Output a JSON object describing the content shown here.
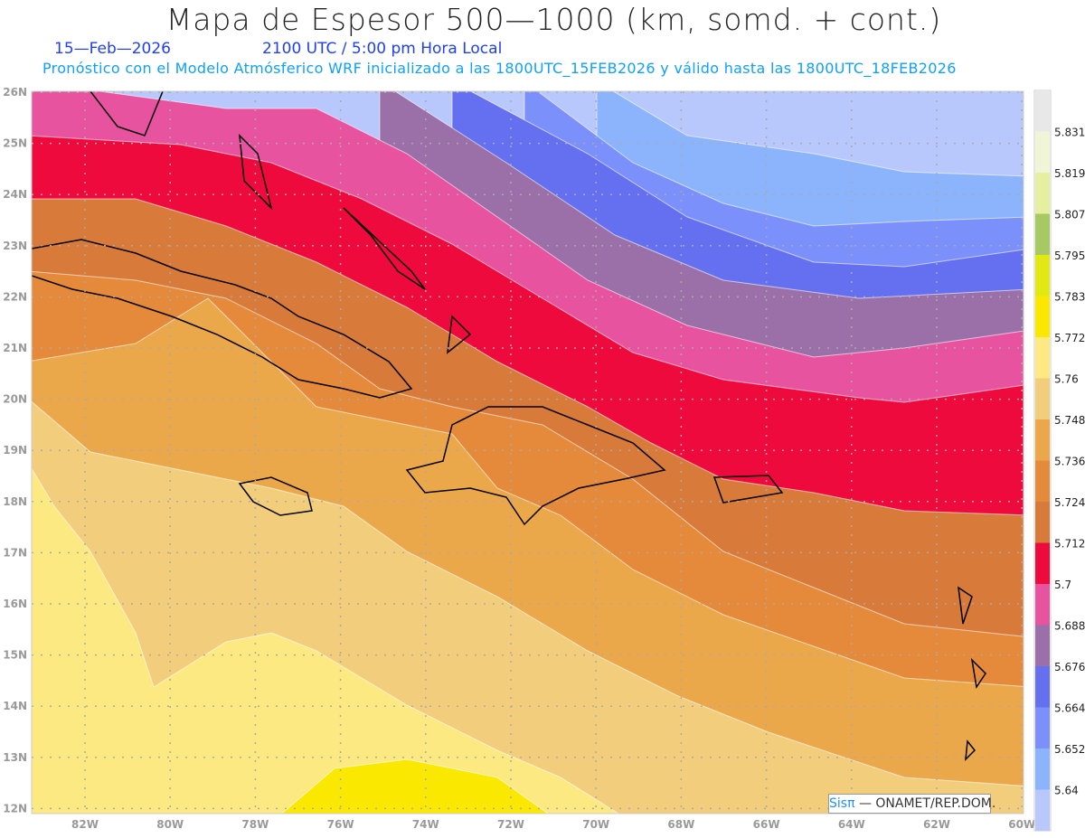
{
  "header": {
    "title": "Mapa de Espesor 500—1000 (km, somd. + cont.)",
    "date": "15—Feb—2026",
    "time": "2100 UTC / 5:00 pm Hora Local",
    "subtitle": "Pronóstico con el Modelo Atmósferico WRF inicializado a las 1800UTC_15FEB2026 y válido hasta las  1800UTC_18FEB2026"
  },
  "axes": {
    "lat_labels": [
      "26N",
      "25N",
      "24N",
      "23N",
      "22N",
      "21N",
      "20N",
      "19N",
      "18N",
      "17N",
      "16N",
      "15N",
      "14N",
      "13N",
      "12N"
    ],
    "lon_labels": [
      "82W",
      "80W",
      "78W",
      "76W",
      "74W",
      "72W",
      "70W",
      "68W",
      "66W",
      "64W",
      "62W",
      "60W"
    ]
  },
  "colorbar": {
    "labels": [
      "5.831",
      "5.819",
      "5.807",
      "5.795",
      "5.783",
      "5.772",
      "5.76",
      "5.748",
      "5.736",
      "5.724",
      "5.712",
      "5.7",
      "5.688",
      "5.676",
      "5.664",
      "5.652",
      "5.64"
    ],
    "colors": [
      "#e8e8e8",
      "#f0f5d8",
      "#e4f0a0",
      "#a8c864",
      "#e2e812",
      "#fbe800",
      "#fde982",
      "#f2cd7c",
      "#eba84a",
      "#e48a3a",
      "#d87a3a",
      "#ef0a3e",
      "#e853a0",
      "#9b70a8",
      "#6470f0",
      "#7c90fc",
      "#8cb4fc",
      "#b8c8fc"
    ]
  },
  "credit": {
    "logo": "Sisπ",
    "text": " — ONAMET/REP.DOM."
  }
}
